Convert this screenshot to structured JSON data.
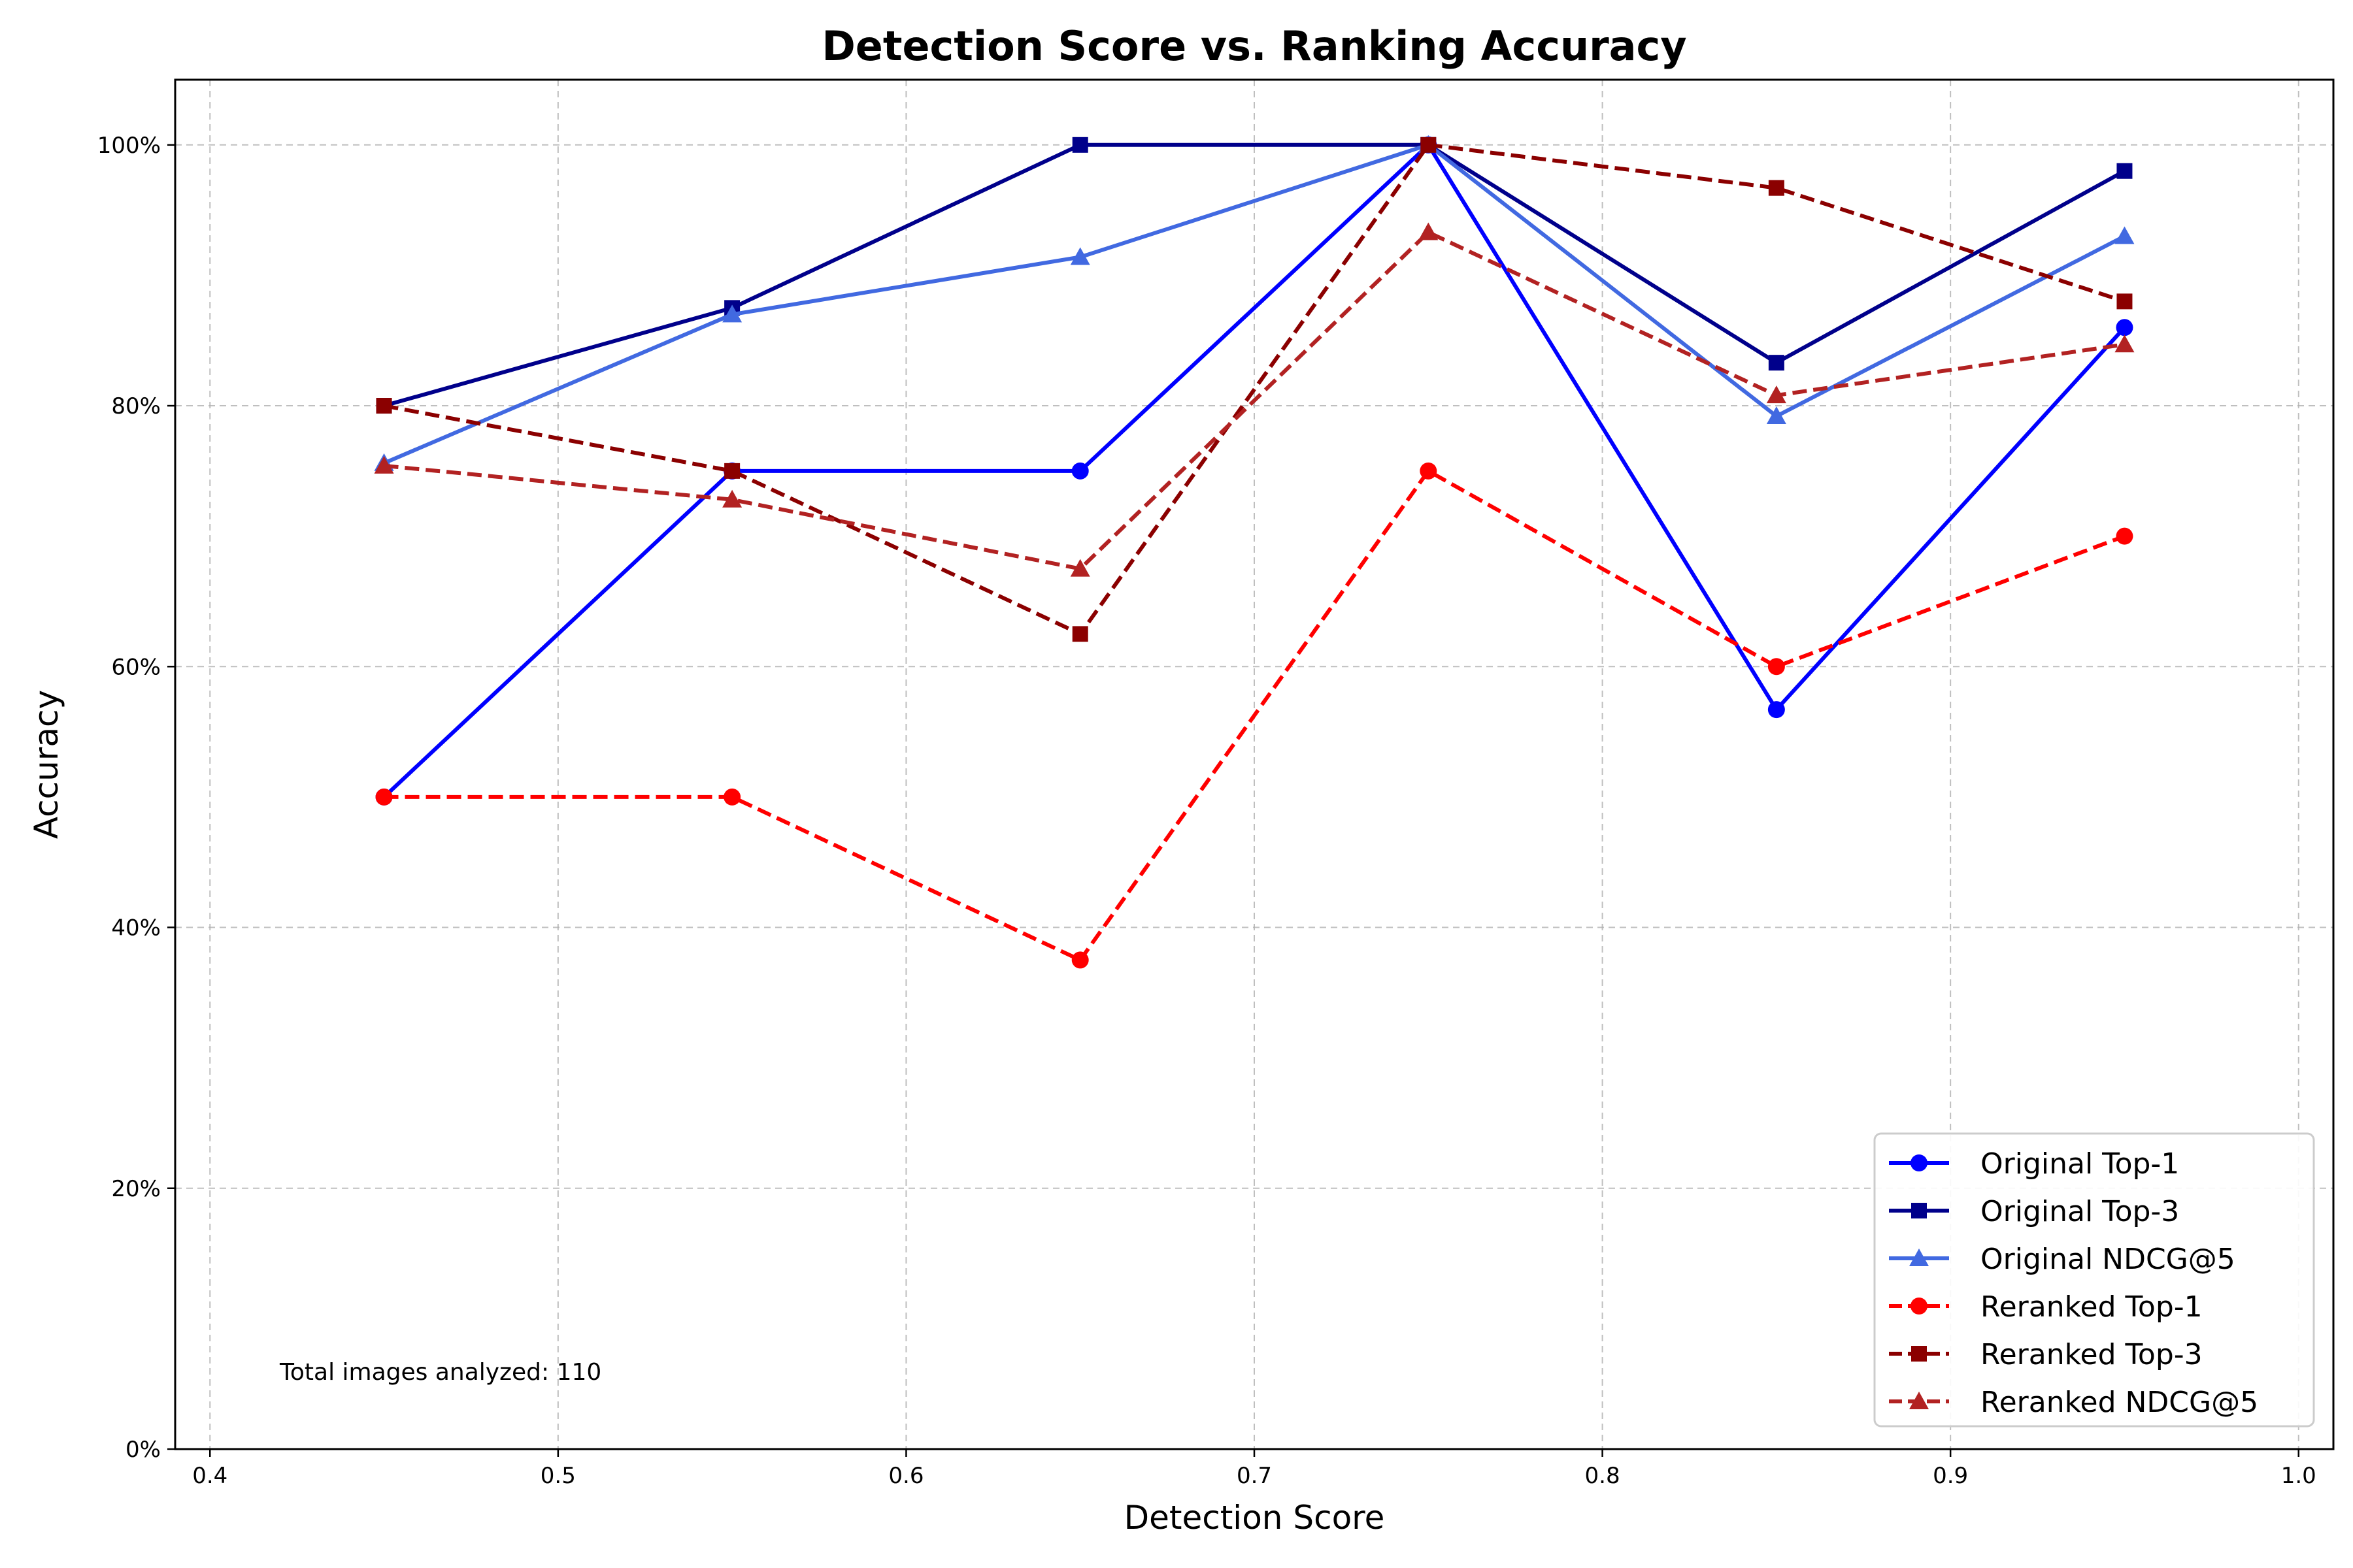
{
  "chart_data": {
    "type": "line",
    "title": "Detection Score vs. Ranking Accuracy",
    "xlabel": "Detection Score",
    "ylabel": "Accuracy",
    "xlim": [
      0.39,
      1.01
    ],
    "ylim": [
      0,
      1.05
    ],
    "x_ticks": [
      0.4,
      0.5,
      0.6,
      0.7,
      0.8,
      0.9,
      1.0
    ],
    "x_tick_labels": [
      "0.4",
      "0.5",
      "0.6",
      "0.7",
      "0.8",
      "0.9",
      "1.0"
    ],
    "y_ticks": [
      0,
      0.2,
      0.4,
      0.6,
      0.8,
      1.0
    ],
    "y_tick_labels": [
      "0%",
      "20%",
      "40%",
      "60%",
      "80%",
      "100%"
    ],
    "grid": true,
    "legend_position": "lower-right",
    "annotation": "Total images analyzed: 110",
    "x": [
      0.45,
      0.55,
      0.65,
      0.75,
      0.85,
      0.95
    ],
    "series": [
      {
        "name": "Original Top-1",
        "values": [
          0.5,
          0.75,
          0.75,
          1.0,
          0.567,
          0.86
        ],
        "color": "#0000ff",
        "dash": "solid",
        "marker": "circle"
      },
      {
        "name": "Original Top-3",
        "values": [
          0.8,
          0.875,
          1.0,
          1.0,
          0.833,
          0.98
        ],
        "color": "#00008b",
        "dash": "solid",
        "marker": "square"
      },
      {
        "name": "Original NDCG@5",
        "values": [
          0.756,
          0.87,
          0.914,
          1.0,
          0.792,
          0.93
        ],
        "color": "#4169e1",
        "dash": "solid",
        "marker": "triangle"
      },
      {
        "name": "Reranked Top-1",
        "values": [
          0.5,
          0.5,
          0.375,
          0.75,
          0.6,
          0.7
        ],
        "color": "#ff0000",
        "dash": "dashed",
        "marker": "circle"
      },
      {
        "name": "Reranked Top-3",
        "values": [
          0.8,
          0.75,
          0.625,
          1.0,
          0.967,
          0.88
        ],
        "color": "#8b0000",
        "dash": "dashed",
        "marker": "square"
      },
      {
        "name": "Reranked NDCG@5",
        "values": [
          0.754,
          0.728,
          0.675,
          0.933,
          0.808,
          0.847
        ],
        "color": "#b22222",
        "dash": "dashed",
        "marker": "triangle"
      }
    ]
  }
}
